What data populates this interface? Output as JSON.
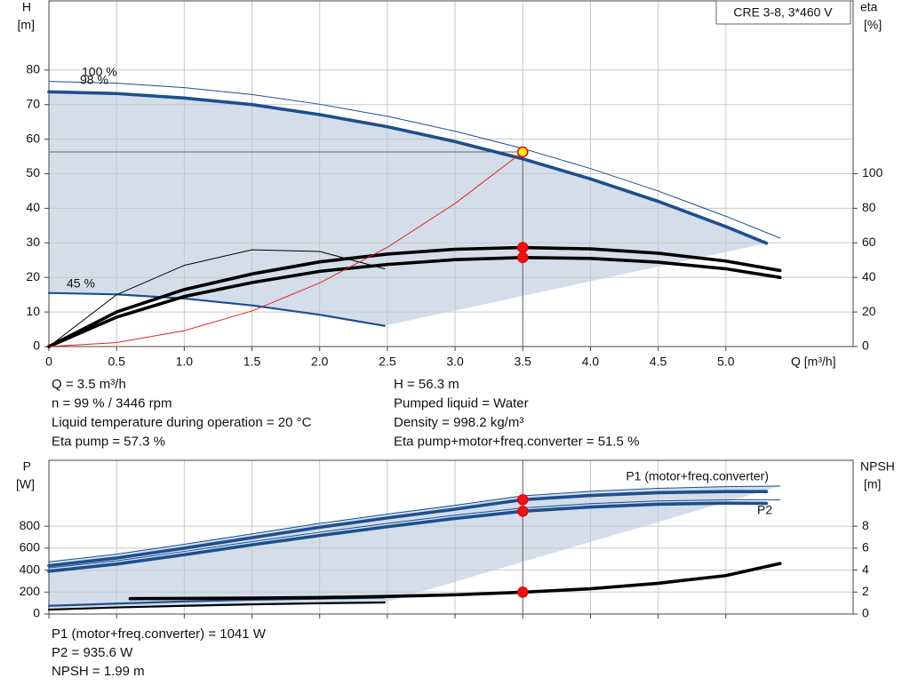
{
  "chart_data": [
    {
      "type": "line",
      "label": "CRE 3-8, 3*460 V",
      "y_label": "H",
      "y_unit": "[m]",
      "y2_label": "eta",
      "y2_unit": "[%]",
      "x_label": "Q [m³/h]",
      "xlim": [
        0,
        5.94
      ],
      "xticks": [
        0,
        0.5,
        {
          "value": 1,
          "label": "1.0"
        },
        1.5,
        {
          "value": 2,
          "label": "2.0"
        },
        2.5,
        {
          "value": 3,
          "label": "3.0"
        },
        3.5,
        {
          "value": 4,
          "label": "4.0"
        },
        4.5,
        {
          "value": 5,
          "label": "5.0"
        }
      ],
      "ylim": [
        0,
        100
      ],
      "yticks": [
        0,
        10,
        20,
        30,
        40,
        50,
        60,
        70,
        80
      ],
      "y2lim": [
        0,
        200
      ],
      "y2ticks": [
        0,
        20,
        40,
        60,
        80,
        100
      ],
      "grid": true,
      "series": [
        {
          "label": "100 %",
          "color": "#1c4f8f",
          "weight": "thin",
          "axis": "y",
          "x": [
            0,
            0.5,
            1,
            1.5,
            2,
            2.5,
            3,
            3.5,
            4,
            4.5,
            5,
            5.4
          ],
          "values": [
            76.7,
            76.2,
            74.9,
            72.9,
            70.1,
            66.6,
            62.3,
            57.3,
            51.5,
            45.0,
            37.7,
            31.4
          ]
        },
        {
          "label": "98 %",
          "color": "#1c4f8f",
          "weight": "thick",
          "axis": "y",
          "x": [
            0,
            0.5,
            1,
            1.5,
            2,
            2.5,
            3,
            3.5,
            4,
            4.5,
            5,
            5.3
          ],
          "values": [
            73.7,
            73.2,
            71.9,
            70.0,
            67.1,
            63.6,
            59.3,
            54.3,
            48.5,
            42.0,
            34.7,
            29.9
          ]
        },
        {
          "label": "45 %",
          "color": "#1c4f8f",
          "weight": "medium",
          "axis": "y",
          "x": [
            0,
            0.5,
            1,
            1.5,
            2,
            2.48
          ],
          "values": [
            15.5,
            15.1,
            13.9,
            11.9,
            9.2,
            6.0
          ]
        },
        {
          "color": "#000000",
          "weight": "thick",
          "axis": "y2",
          "x": [
            0,
            0.5,
            1,
            1.5,
            2,
            2.5,
            3,
            3.5,
            4,
            4.5,
            5,
            5.4
          ],
          "values": [
            0,
            20,
            33,
            42,
            49,
            53.5,
            56.3,
            57.3,
            56.5,
            54,
            49.5,
            44.0
          ]
        },
        {
          "color": "#000000",
          "weight": "thick",
          "axis": "y2",
          "x": [
            0,
            0.5,
            1,
            1.5,
            2,
            2.5,
            3,
            3.5,
            4,
            4.5,
            5,
            5.4
          ],
          "values": [
            0,
            17,
            29,
            37,
            43.5,
            47.5,
            50.3,
            51.5,
            51,
            48.8,
            45,
            40
          ]
        },
        {
          "color": "#000000",
          "weight": "thin",
          "axis": "y2",
          "x": [
            0,
            0.5,
            1,
            1.5,
            2,
            2.48
          ],
          "values": [
            0,
            30,
            47,
            56,
            55,
            45
          ]
        },
        {
          "color": "#e02020",
          "weight": "thin",
          "axis": "y",
          "x": [
            0,
            0.5,
            1,
            1.5,
            2,
            2.5,
            3,
            3.5
          ],
          "values": [
            0,
            1.15,
            4.6,
            10.3,
            18.4,
            28.7,
            41.4,
            56.3
          ]
        }
      ],
      "points": [
        {
          "x": 3.5,
          "value": 56.3,
          "axis": "y",
          "color": "#ffee00"
        },
        {
          "x": 3.5,
          "value": 57.3,
          "axis": "y2",
          "color": "#ee1111"
        },
        {
          "x": 3.5,
          "value": 51.5,
          "axis": "y2",
          "color": "#ee1111"
        }
      ]
    },
    {
      "type": "line",
      "y_label": "P",
      "y_unit": "[W]",
      "y2_label": "NPSH",
      "y2_unit": "[m]",
      "xlim": [
        0,
        5.94
      ],
      "ylim": [
        0,
        1400
      ],
      "yticks": [
        0,
        200,
        400,
        600,
        800
      ],
      "y2lim": [
        0,
        14
      ],
      "y2ticks": [
        0,
        2,
        4,
        6,
        8
      ],
      "grid": true,
      "series": [
        {
          "color": "#1c4f8f",
          "weight": "thin",
          "axis": "y",
          "x": [
            0,
            0.5,
            1,
            1.5,
            2,
            2.5,
            3,
            3.5,
            4,
            4.5,
            5,
            5.4
          ],
          "values": [
            475,
            545,
            635,
            730,
            825,
            910,
            990,
            1076,
            1118,
            1145,
            1160,
            1165
          ]
        },
        {
          "label": "P1 (motor+freq.converter)",
          "color": "#1c4f8f",
          "weight": "thick",
          "axis": "y",
          "x": [
            0,
            0.5,
            1,
            1.5,
            2,
            2.5,
            3,
            3.5,
            4,
            4.5,
            5,
            5.3
          ],
          "values": [
            440,
            510,
            600,
            695,
            790,
            875,
            955,
            1041,
            1080,
            1105,
            1115,
            1115
          ]
        },
        {
          "color": "#1c4f8f",
          "weight": "thin",
          "axis": "y",
          "x": [
            0,
            0.5,
            1,
            1.5,
            2,
            2.5,
            3,
            3.5,
            4,
            4.5,
            5,
            5.4
          ],
          "values": [
            420,
            485,
            570,
            660,
            745,
            825,
            900,
            966,
            1005,
            1030,
            1040,
            1040
          ]
        },
        {
          "label": "P2",
          "color": "#1c4f8f",
          "weight": "thick",
          "axis": "y",
          "x": [
            0,
            0.5,
            1,
            1.5,
            2,
            2.5,
            3,
            3.5,
            4,
            4.5,
            5,
            5.3
          ],
          "values": [
            390,
            455,
            540,
            630,
            715,
            795,
            870,
            936,
            975,
            1000,
            1010,
            1008
          ]
        },
        {
          "color": "#1c4f8f",
          "weight": "medium",
          "axis": "y",
          "x": [
            0,
            0.5,
            1,
            1.5,
            2,
            2.48
          ],
          "values": [
            75,
            95,
            115,
            130,
            140,
            150
          ]
        },
        {
          "color": "#000000",
          "weight": "medium",
          "axis": "y",
          "x": [
            0,
            0.5,
            1,
            1.5,
            2,
            2.48
          ],
          "values": [
            40,
            60,
            75,
            88,
            98,
            105
          ]
        },
        {
          "color": "#000000",
          "weight": "thick",
          "axis": "y2",
          "x": [
            0.6,
            1,
            1.5,
            2,
            2.5,
            3,
            3.5,
            4,
            4.5,
            5,
            5.4
          ],
          "values": [
            1.4,
            1.42,
            1.45,
            1.5,
            1.6,
            1.75,
            1.99,
            2.3,
            2.8,
            3.5,
            4.6
          ]
        }
      ],
      "points": [
        {
          "x": 3.5,
          "value": 1041,
          "axis": "y",
          "color": "#ee1111"
        },
        {
          "x": 3.5,
          "value": 935.6,
          "axis": "y",
          "color": "#ee1111"
        },
        {
          "x": 3.5,
          "value": 1.99,
          "axis": "y2",
          "color": "#ee1111"
        }
      ]
    }
  ],
  "info_top_left": [
    "Q = 3.5 m³/h",
    "n = 99 % / 3446 rpm",
    "Liquid temperature during operation = 20 °C",
    "Eta pump = 57.3 %"
  ],
  "info_top_right": [
    "H = 56.3 m",
    "Pumped liquid = Water",
    "Density = 998.2 kg/m³",
    "Eta pump+motor+freq.converter = 51.5 %"
  ],
  "info_bottom": [
    "P1 (motor+freq.converter) = 1041 W",
    "P2 = 935.6 W",
    "NPSH = 1.99 m"
  ]
}
